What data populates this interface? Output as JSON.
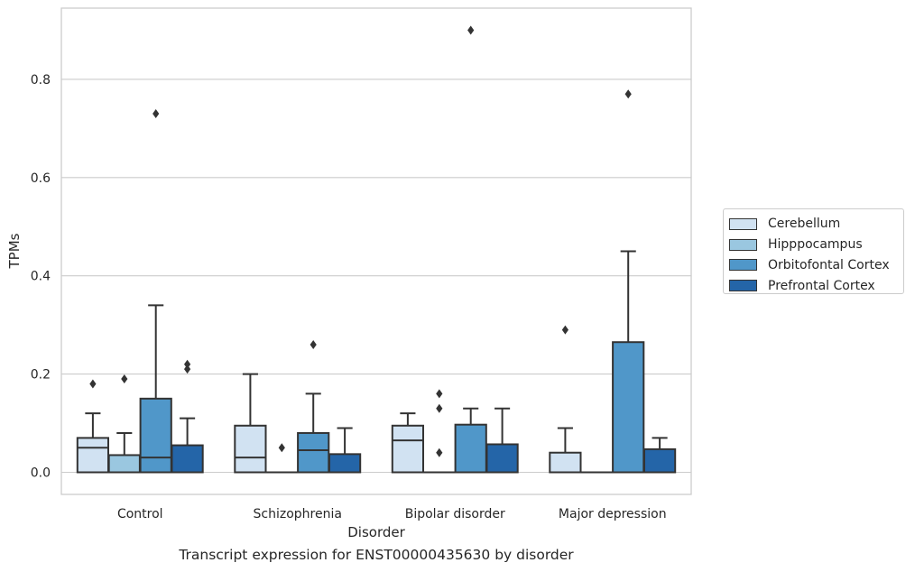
{
  "chart_data": {
    "type": "boxplot",
    "title": "",
    "xlabel": "Disorder",
    "ylabel": "TPMs",
    "caption": "Transcript expression for ENST00000435630 by disorder",
    "categories": [
      "Control",
      "Schizophrenia",
      "Bipolar disorder",
      "Major depression"
    ],
    "ylim": [
      -0.045,
      0.945
    ],
    "yticks": [
      "0.0",
      "0.2",
      "0.4",
      "0.6",
      "0.8"
    ],
    "grid": "horizontal",
    "legend_position": "right",
    "series": [
      {
        "name": "Cerebellum",
        "color": "#d1e2f2",
        "boxes": [
          {
            "whisker_low": 0,
            "q1": 0,
            "median": 0.05,
            "q3": 0.07,
            "whisker_high": 0.12,
            "outliers": [
              0.18
            ]
          },
          {
            "whisker_low": 0,
            "q1": 0,
            "median": 0.03,
            "q3": 0.095,
            "whisker_high": 0.2,
            "outliers": []
          },
          {
            "whisker_low": 0,
            "q1": 0,
            "median": 0.065,
            "q3": 0.095,
            "whisker_high": 0.12,
            "outliers": []
          },
          {
            "whisker_low": 0,
            "q1": 0,
            "median": 0,
            "q3": 0.04,
            "whisker_high": 0.09,
            "outliers": [
              0.29
            ]
          }
        ]
      },
      {
        "name": "Hipppocampus",
        "color": "#9ac7e0",
        "boxes": [
          {
            "whisker_low": 0,
            "q1": 0,
            "median": 0,
            "q3": 0.035,
            "whisker_high": 0.08,
            "outliers": [
              0.19
            ]
          },
          {
            "whisker_low": 0,
            "q1": 0,
            "median": 0,
            "q3": 0,
            "whisker_high": 0,
            "outliers": [
              0.05
            ]
          },
          {
            "whisker_low": 0,
            "q1": 0,
            "median": 0,
            "q3": 0,
            "whisker_high": 0,
            "outliers": [
              0.04,
              0.13,
              0.16
            ]
          },
          {
            "whisker_low": 0,
            "q1": 0,
            "median": 0,
            "q3": 0,
            "whisker_high": 0,
            "outliers": []
          }
        ]
      },
      {
        "name": "Orbitofontal Cortex",
        "color": "#5097c9",
        "boxes": [
          {
            "whisker_low": 0,
            "q1": 0,
            "median": 0.03,
            "q3": 0.15,
            "whisker_high": 0.34,
            "outliers": [
              0.73
            ]
          },
          {
            "whisker_low": 0,
            "q1": 0,
            "median": 0.045,
            "q3": 0.08,
            "whisker_high": 0.16,
            "outliers": [
              0.26
            ]
          },
          {
            "whisker_low": 0,
            "q1": 0,
            "median": 0,
            "q3": 0.097,
            "whisker_high": 0.13,
            "outliers": [
              0.9
            ]
          },
          {
            "whisker_low": 0,
            "q1": 0,
            "median": 0,
            "q3": 0.265,
            "whisker_high": 0.45,
            "outliers": [
              0.77
            ]
          }
        ]
      },
      {
        "name": "Prefrontal Cortex",
        "color": "#2465a8",
        "boxes": [
          {
            "whisker_low": 0,
            "q1": 0,
            "median": 0,
            "q3": 0.055,
            "whisker_high": 0.11,
            "outliers": [
              0.21,
              0.22
            ]
          },
          {
            "whisker_low": 0,
            "q1": 0,
            "median": 0,
            "q3": 0.037,
            "whisker_high": 0.09,
            "outliers": []
          },
          {
            "whisker_low": 0,
            "q1": 0,
            "median": 0,
            "q3": 0.057,
            "whisker_high": 0.13,
            "outliers": []
          },
          {
            "whisker_low": 0,
            "q1": 0,
            "median": 0,
            "q3": 0.047,
            "whisker_high": 0.07,
            "outliers": []
          }
        ]
      }
    ]
  }
}
